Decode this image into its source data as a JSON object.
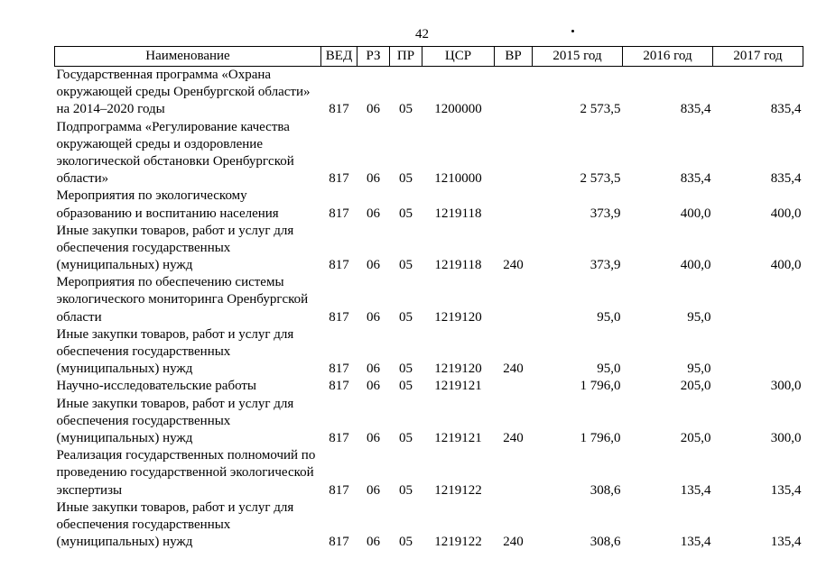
{
  "page": {
    "number": "42"
  },
  "table": {
    "headers": [
      "Наименование",
      "ВЕД",
      "РЗ",
      "ПР",
      "ЦСР",
      "ВР",
      "2015 год",
      "2016 год",
      "2017 год"
    ],
    "column_keys": [
      "name",
      "ved",
      "rz",
      "pr",
      "csr",
      "vr",
      "y2015",
      "y2016",
      "y2017"
    ],
    "rows": [
      {
        "name": "Государственная программа «Охрана окружающей среды Оренбургской области» на 2014–2020 годы",
        "ved": "817",
        "rz": "06",
        "pr": "05",
        "csr": "1200000",
        "vr": "",
        "y2015": "2 573,5",
        "y2016": "835,4",
        "y2017": "835,4"
      },
      {
        "name": "Подпрограмма «Регулирование качества окружающей среды и оздоровление экологической обстановки Оренбургской области»",
        "ved": "817",
        "rz": "06",
        "pr": "05",
        "csr": "1210000",
        "vr": "",
        "y2015": "2 573,5",
        "y2016": "835,4",
        "y2017": "835,4"
      },
      {
        "name": "Мероприятия по экологическому образованию и воспитанию населения",
        "ved": "817",
        "rz": "06",
        "pr": "05",
        "csr": "1219118",
        "vr": "",
        "y2015": "373,9",
        "y2016": "400,0",
        "y2017": "400,0"
      },
      {
        "name": "Иные закупки товаров, работ и услуг для обеспечения государственных (муниципальных) нужд",
        "ved": "817",
        "rz": "06",
        "pr": "05",
        "csr": "1219118",
        "vr": "240",
        "y2015": "373,9",
        "y2016": "400,0",
        "y2017": "400,0"
      },
      {
        "name": "Мероприятия по обеспечению системы экологического мониторинга Оренбургской области",
        "ved": "817",
        "rz": "06",
        "pr": "05",
        "csr": "1219120",
        "vr": "",
        "y2015": "95,0",
        "y2016": "95,0",
        "y2017": ""
      },
      {
        "name": "Иные закупки товаров, работ и услуг для обеспечения государственных (муниципальных) нужд",
        "ved": "817",
        "rz": "06",
        "pr": "05",
        "csr": "1219120",
        "vr": "240",
        "y2015": "95,0",
        "y2016": "95,0",
        "y2017": ""
      },
      {
        "name": "Научно-исследовательские работы",
        "ved": "817",
        "rz": "06",
        "pr": "05",
        "csr": "1219121",
        "vr": "",
        "y2015": "1 796,0",
        "y2016": "205,0",
        "y2017": "300,0"
      },
      {
        "name": "Иные закупки товаров, работ и услуг для обеспечения государственных (муниципальных) нужд",
        "ved": "817",
        "rz": "06",
        "pr": "05",
        "csr": "1219121",
        "vr": "240",
        "y2015": "1 796,0",
        "y2016": "205,0",
        "y2017": "300,0"
      },
      {
        "name": "Реализация государственных полномочий по проведению государственной экологической экспертизы",
        "ved": "817",
        "rz": "06",
        "pr": "05",
        "csr": "1219122",
        "vr": "",
        "y2015": "308,6",
        "y2016": "135,4",
        "y2017": "135,4"
      },
      {
        "name": "Иные закупки товаров, работ и услуг для обеспечения государственных (муниципальных) нужд",
        "ved": "817",
        "rz": "06",
        "pr": "05",
        "csr": "1219122",
        "vr": "240",
        "y2015": "308,6",
        "y2016": "135,4",
        "y2017": "135,4"
      }
    ]
  }
}
